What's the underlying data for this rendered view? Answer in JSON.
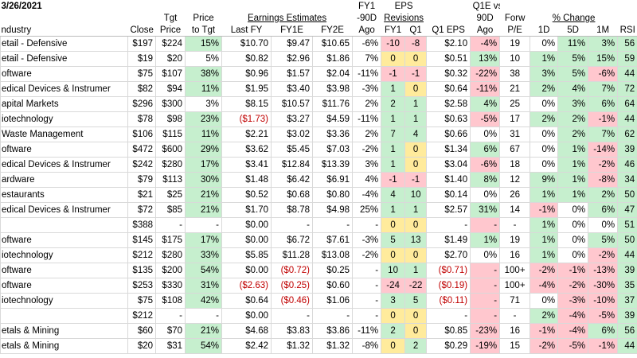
{
  "header": {
    "date": "3/26/2021",
    "top": {
      "fy1": "FY1",
      "eps": "EPS",
      "q1e_vs": "Q1E vs"
    },
    "middle": {
      "tgt": "Tgt",
      "price": "Price",
      "earnings_estimates": "Earnings Estimates",
      "ago90": "-90D",
      "revisions": "Revisions",
      "q1e90": "90D",
      "forw": "Forw",
      "pct_change": "% Change"
    },
    "columns": [
      "ndustry",
      "Close",
      "Price",
      "to Tgt",
      "Last FY",
      "FY1E",
      "FY2E",
      "Ago",
      "FY1",
      "Q1",
      "Q1 EPS",
      "Ago",
      "P/E",
      "1D",
      "5D",
      "1M",
      "RSI"
    ]
  },
  "table": {
    "rows": [
      [
        "etail - Defensive",
        "$197",
        "$224",
        "15%",
        "$10.70",
        "$9.47",
        "$10.65",
        "-6%",
        "-10",
        "-8",
        "$2.10",
        "-4%",
        "19",
        "0%",
        "11%",
        "3%",
        "56"
      ],
      [
        "etail - Defensive",
        "$19",
        "$20",
        "5%",
        "$0.82",
        "$2.96",
        "$1.86",
        "7%",
        "0",
        "0",
        "$0.51",
        "13%",
        "10",
        "1%",
        "5%",
        "15%",
        "59"
      ],
      [
        "oftware",
        "$75",
        "$107",
        "38%",
        "$0.96",
        "$1.57",
        "$2.04",
        "-11%",
        "-1",
        "-1",
        "$0.32",
        "-22%",
        "38",
        "3%",
        "5%",
        "-6%",
        "44"
      ],
      [
        "edical Devices & Instrumer",
        "$82",
        "$94",
        "11%",
        "$1.95",
        "$3.40",
        "$3.98",
        "-3%",
        "1",
        "0",
        "$0.64",
        "-11%",
        "21",
        "2%",
        "4%",
        "7%",
        "72"
      ],
      [
        "apital Markets",
        "$296",
        "$300",
        "3%",
        "$8.15",
        "$10.57",
        "$11.76",
        "2%",
        "2",
        "1",
        "$2.58",
        "4%",
        "25",
        "0%",
        "3%",
        "6%",
        "64"
      ],
      [
        "iotechnology",
        "$78",
        "$98",
        "23%",
        "($1.73)",
        "$3.27",
        "$4.59",
        "-11%",
        "1",
        "1",
        "$0.63",
        "-5%",
        "17",
        "2%",
        "2%",
        "-1%",
        "44"
      ],
      [
        "Waste Management",
        "$106",
        "$115",
        "11%",
        "$2.21",
        "$3.02",
        "$3.36",
        "2%",
        "7",
        "4",
        "$0.66",
        "0%",
        "31",
        "0%",
        "2%",
        "7%",
        "62"
      ],
      [
        "oftware",
        "$472",
        "$600",
        "29%",
        "$3.62",
        "$5.45",
        "$7.03",
        "-2%",
        "1",
        "0",
        "$1.34",
        "6%",
        "67",
        "0%",
        "1%",
        "-14%",
        "39"
      ],
      [
        "edical Devices & Instrumer",
        "$242",
        "$280",
        "17%",
        "$3.41",
        "$12.84",
        "$13.39",
        "3%",
        "1",
        "0",
        "$3.04",
        "-6%",
        "18",
        "0%",
        "1%",
        "-2%",
        "46"
      ],
      [
        "ardware",
        "$79",
        "$113",
        "30%",
        "$1.48",
        "$6.42",
        "$6.91",
        "4%",
        "-1",
        "-1",
        "$1.40",
        "8%",
        "12",
        "9%",
        "1%",
        "-8%",
        "34"
      ],
      [
        "estaurants",
        "$21",
        "$25",
        "21%",
        "$0.52",
        "$0.68",
        "$0.80",
        "-4%",
        "4",
        "10",
        "$0.14",
        "0%",
        "26",
        "1%",
        "1%",
        "2%",
        "50"
      ],
      [
        "edical Devices & Instrumer",
        "$72",
        "$85",
        "21%",
        "$1.70",
        "$8.78",
        "$4.98",
        "25%",
        "1",
        "1",
        "$2.57",
        "31%",
        "14",
        "-1%",
        "0%",
        "6%",
        "47"
      ],
      [
        null,
        "$388",
        "-",
        "-",
        "$0.00",
        "-",
        "-",
        "-",
        "0",
        "0",
        "-",
        "-",
        "-",
        "1%",
        "0%",
        "0%",
        "51"
      ],
      [
        "oftware",
        "$145",
        "$175",
        "17%",
        "$0.00",
        "$6.72",
        "$7.61",
        "-3%",
        "5",
        "13",
        "$1.49",
        "1%",
        "19",
        "1%",
        "0%",
        "5%",
        "50"
      ],
      [
        "iotechnology",
        "$212",
        "$280",
        "33%",
        "$5.85",
        "$11.28",
        "$13.08",
        "-2%",
        "0",
        "0",
        "$2.70",
        "0%",
        "16",
        "1%",
        "0%",
        "-2%",
        "44"
      ],
      [
        "oftware",
        "$135",
        "$200",
        "54%",
        "$0.00",
        "($0.72)",
        "$0.25",
        "-",
        "10",
        "1",
        "($0.71)",
        "-",
        "100+",
        "-2%",
        "-1%",
        "-13%",
        "39"
      ],
      [
        "oftware",
        "$253",
        "$330",
        "31%",
        "($2.63)",
        "($0.25)",
        "$0.60",
        "-",
        "-24",
        "-22",
        "($0.19)",
        "-",
        "100+",
        "-4%",
        "-2%",
        "-30%",
        "35"
      ],
      [
        "iotechnology",
        "$75",
        "$108",
        "42%",
        "$0.64",
        "($0.46)",
        "$1.06",
        "-",
        "3",
        "5",
        "($0.11)",
        "-",
        "71",
        "0%",
        "-3%",
        "-10%",
        "37"
      ],
      [
        null,
        "$212",
        "-",
        "-",
        "$0.00",
        "-",
        "-",
        "-",
        "0",
        "0",
        "-",
        "-",
        "-",
        "2%",
        "-4%",
        "-5%",
        "39"
      ],
      [
        "etals & Mining",
        "$60",
        "$70",
        "21%",
        "$4.68",
        "$3.83",
        "$3.86",
        "-11%",
        "2",
        "0",
        "$0.85",
        "-23%",
        "16",
        "-1%",
        "-4%",
        "6%",
        "56"
      ],
      [
        "etals & Mining",
        "$20",
        "$31",
        "54%",
        "$2.42",
        "$1.32",
        "$1.32",
        "-8%",
        "0",
        "2",
        "$0.29",
        "-19%",
        "15",
        "-2%",
        "-5%",
        "-1%",
        "44"
      ]
    ]
  }
}
